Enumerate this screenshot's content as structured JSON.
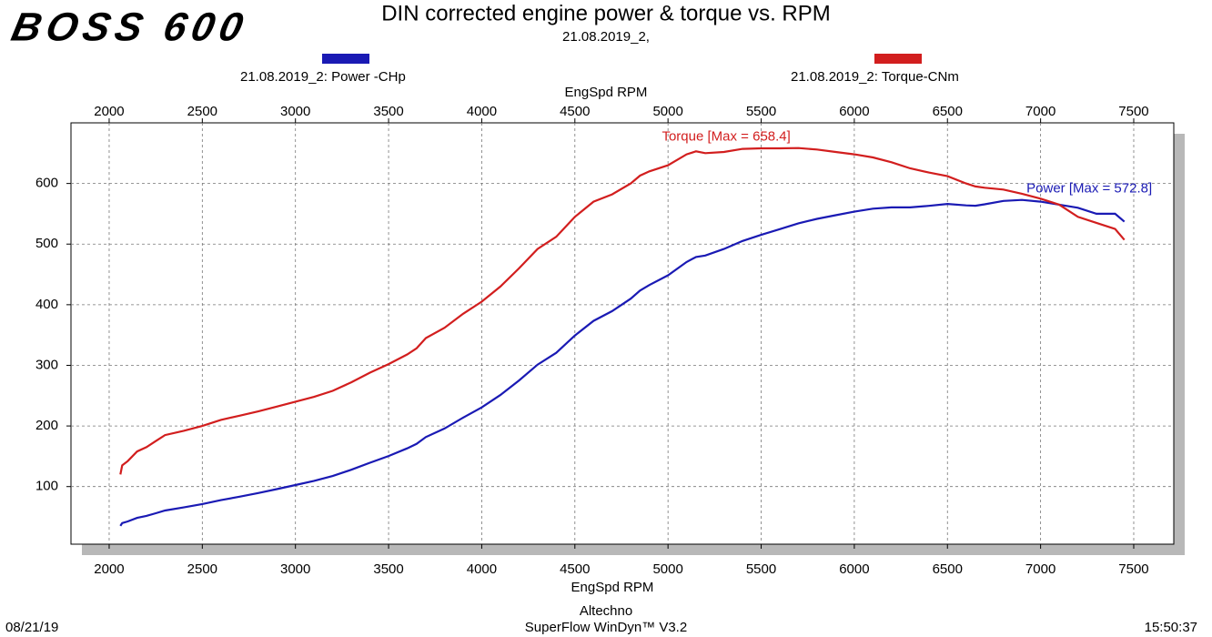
{
  "logo": "BOSS 600",
  "footer": {
    "date": "08/21/19",
    "company": "Altechno",
    "software": "SuperFlow WinDyn™ V3.2",
    "time": "15:50:37"
  },
  "chart_data": {
    "type": "line",
    "title": "DIN corrected engine power & torque vs. RPM",
    "subtitle": "21.08.2019_2,",
    "x_label": "EngSpd RPM",
    "x": [
      2060,
      2070,
      2100,
      2150,
      2200,
      2250,
      2300,
      2400,
      2500,
      2600,
      2700,
      2800,
      2900,
      3000,
      3100,
      3200,
      3300,
      3400,
      3500,
      3600,
      3650,
      3700,
      3800,
      3900,
      4000,
      4100,
      4200,
      4300,
      4400,
      4500,
      4600,
      4700,
      4800,
      4850,
      4900,
      5000,
      5100,
      5150,
      5200,
      5300,
      5400,
      5500,
      5600,
      5700,
      5800,
      5900,
      6000,
      6100,
      6200,
      6300,
      6400,
      6500,
      6600,
      6650,
      6700,
      6800,
      6900,
      7000,
      7100,
      7200,
      7300,
      7400,
      7450
    ],
    "series": [
      {
        "name": "21.08.2019_2: Power -CHp",
        "color": "#1a1ab4",
        "annotation": "Power [Max = 572.8]",
        "values": [
          35.2,
          39.8,
          42.5,
          48.4,
          51.7,
          56.1,
          60.6,
          65.6,
          71.2,
          77.7,
          83.4,
          89.3,
          95.8,
          102.5,
          109.5,
          117.5,
          127.8,
          139.4,
          150.5,
          163,
          170.4,
          181.7,
          195.8,
          213.8,
          230.6,
          251,
          275,
          301.2,
          320.7,
          349.2,
          373.3,
          389.4,
          410,
          423.3,
          432.5,
          448.5,
          470.5,
          478.8,
          481.2,
          492,
          505.1,
          515.2,
          524.6,
          534.3,
          541.7,
          547.7,
          553.5,
          558.4,
          560.5,
          560.6,
          563.1,
          566.3,
          563.8,
          563.3,
          565.6,
          571.2,
          572.8,
          570,
          565,
          560,
          550,
          550,
          537
        ]
      },
      {
        "name": "21.08.2019_2: Torque-CNm",
        "color": "#d21e1e",
        "annotation": "Torque [Max = 658.4]",
        "values": [
          120,
          135,
          142,
          158,
          165,
          175,
          185,
          192,
          200,
          210,
          217,
          224,
          232,
          240,
          248,
          258,
          272,
          288,
          302,
          318,
          328,
          345,
          362,
          385,
          405,
          430,
          460,
          492,
          512,
          545,
          570,
          582,
          600,
          613,
          620,
          630,
          648,
          653,
          650,
          652,
          657,
          658,
          658,
          658.4,
          656,
          652,
          648,
          643,
          635,
          625,
          618,
          612,
          600,
          595,
          593,
          590,
          583,
          575,
          565,
          545,
          535,
          525,
          507
        ]
      }
    ],
    "xlim": [
      1795,
      7715
    ],
    "ylim": [
      5,
      700
    ],
    "xticks": [
      2000,
      2500,
      3000,
      3500,
      4000,
      4500,
      5000,
      5500,
      6000,
      6500,
      7000,
      7500
    ],
    "yticks": [
      100,
      200,
      300,
      400,
      500,
      600
    ],
    "grid": true
  }
}
